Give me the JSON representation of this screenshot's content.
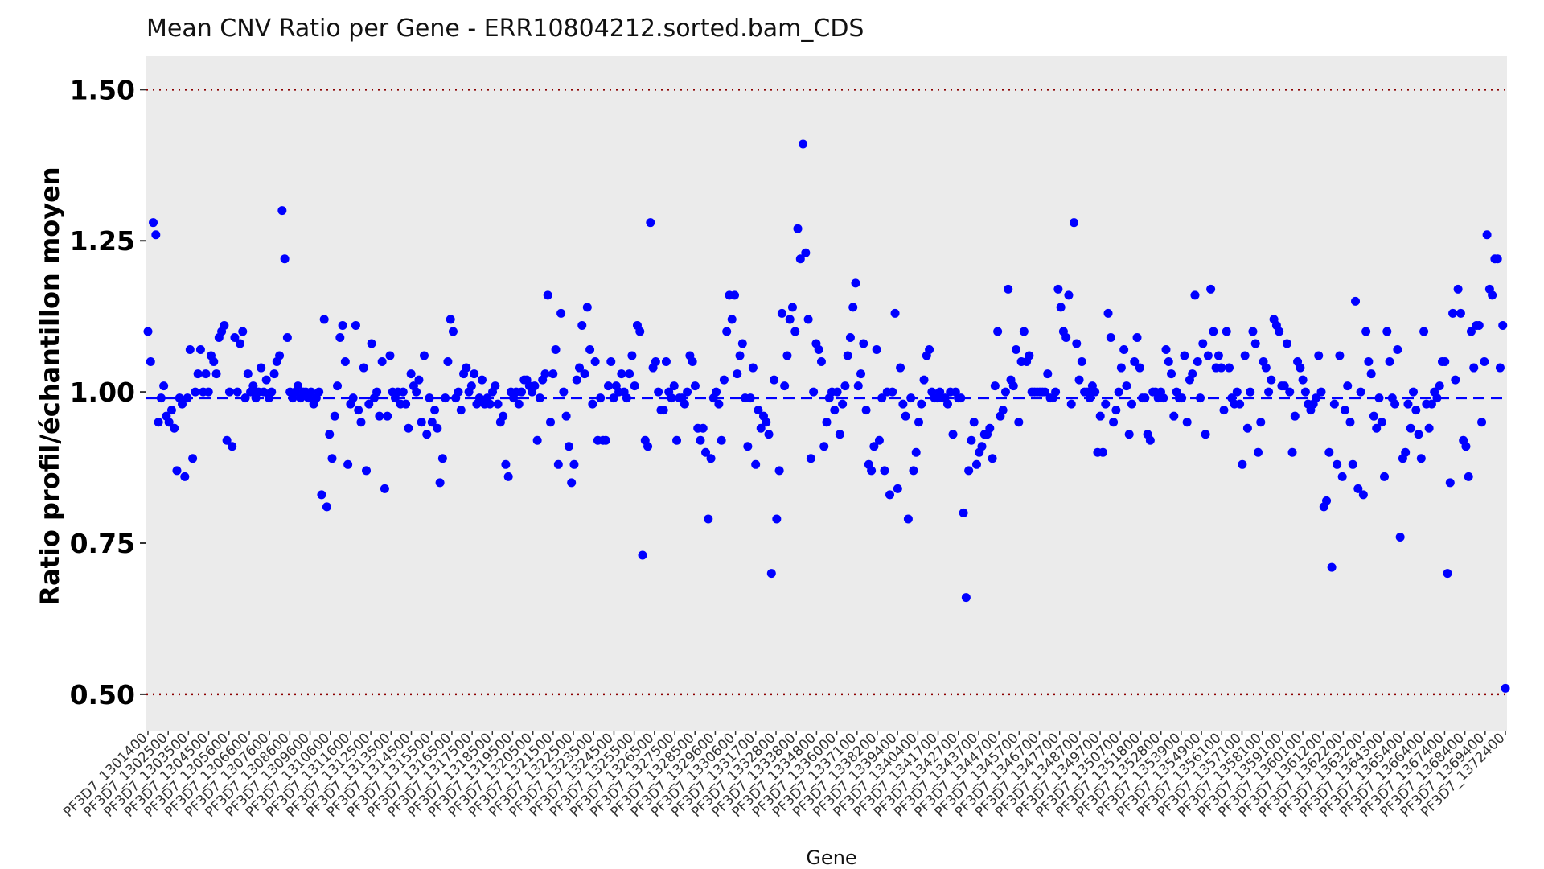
{
  "chart_data": {
    "type": "scatter",
    "title": "Mean CNV Ratio per Gene - ERR10804212.sorted.bam_CDS",
    "xlabel": "Gene",
    "ylabel": "Ratio profil/échantillon moyen",
    "ylim": [
      0.44,
      1.555
    ],
    "yticks": [
      0.5,
      0.75,
      1.0,
      1.25,
      1.5
    ],
    "ytick_labels": [
      "0.50",
      "0.75",
      "1.00",
      "1.25",
      "1.50"
    ],
    "reference_lines": [
      {
        "y": 1.5,
        "style": "dotted",
        "color": "#8b0000"
      },
      {
        "y": 0.5,
        "style": "dotted",
        "color": "#8b0000"
      },
      {
        "y": 0.99,
        "style": "dashed",
        "color": "#0000ff"
      }
    ],
    "grid": false,
    "point_color": "#0000ff",
    "plot_background": "#ebebeb",
    "xtick_labels": [
      "PF3D7_1301400",
      "PF3D7_1302500",
      "PF3D7_1303500",
      "PF3D7_1304500",
      "PF3D7_1305600",
      "PF3D7_1306600",
      "PF3D7_1307600",
      "PF3D7_1308600",
      "PF3D7_1309600",
      "PF3D7_1310600",
      "PF3D7_1311600",
      "PF3D7_1312500",
      "PF3D7_1313500",
      "PF3D7_1314500",
      "PF3D7_1315500",
      "PF3D7_1316500",
      "PF3D7_1317500",
      "PF3D7_1318500",
      "PF3D7_1319500",
      "PF3D7_1320500",
      "PF3D7_1321500",
      "PF3D7_1322500",
      "PF3D7_1323500",
      "PF3D7_1324500",
      "PF3D7_1325500",
      "PF3D7_1326500",
      "PF3D7_1327500",
      "PF3D7_1328500",
      "PF3D7_1329600",
      "PF3D7_1330600",
      "PF3D7_1331700",
      "PF3D7_1332800",
      "PF3D7_1333800",
      "PF3D7_1334800",
      "PF3D7_1336000",
      "PF3D7_1337100",
      "PF3D7_1338200",
      "PF3D7_1339400",
      "PF3D7_1340400",
      "PF3D7_1341700",
      "PF3D7_1342700",
      "PF3D7_1343700",
      "PF3D7_1344700",
      "PF3D7_1345700",
      "PF3D7_1346700",
      "PF3D7_1347700",
      "PF3D7_1348700",
      "PF3D7_1349700",
      "PF3D7_1350700",
      "PF3D7_1351800",
      "PF3D7_1352800",
      "PF3D7_1353900",
      "PF3D7_1354900",
      "PF3D7_1356100",
      "PF3D7_1357100",
      "PF3D7_1358100",
      "PF3D7_1359100",
      "PF3D7_1360100",
      "PF3D7_1361200",
      "PF3D7_1362200",
      "PF3D7_1363200",
      "PF3D7_1364300",
      "PF3D7_1365400",
      "PF3D7_1366400",
      "PF3D7_1367400",
      "PF3D7_1368400",
      "PF3D7_1369400",
      "PF3D7_1372400"
    ],
    "y": [
      1.1,
      1.05,
      1.28,
      1.26,
      0.95,
      0.99,
      1.01,
      0.96,
      0.95,
      0.97,
      0.94,
      0.87,
      0.99,
      0.98,
      0.86,
      0.99,
      1.07,
      0.89,
      1.0,
      1.03,
      1.07,
      1.0,
      1.03,
      1.0,
      1.06,
      1.05,
      1.03,
      1.09,
      1.1,
      1.11,
      0.92,
      1.0,
      0.91,
      1.09,
      1.0,
      1.08,
      1.1,
      0.99,
      1.03,
      1.0,
      1.01,
      0.99,
      1.0,
      1.04,
      1.0,
      1.02,
      0.99,
      1.0,
      1.03,
      1.05,
      1.06,
      1.3,
      1.22,
      1.09,
      1.0,
      0.99,
      1.0,
      1.01,
      0.99,
      1.0,
      1.0,
      0.99,
      1.0,
      0.98,
      0.99,
      1.0,
      0.83,
      1.12,
      0.81,
      0.93,
      0.89,
      0.96,
      1.01,
      1.09,
      1.11,
      1.05,
      0.88,
      0.98,
      0.99,
      1.11,
      0.97,
      0.95,
      1.04,
      0.87,
      0.98,
      1.08,
      0.99,
      1.0,
      0.96,
      1.05,
      0.84,
      0.96,
      1.06,
      1.0,
      0.99,
      1.0,
      0.98,
      1.0,
      0.98,
      0.94,
      1.03,
      1.01,
      1.0,
      1.02,
      0.95,
      1.06,
      0.93,
      0.99,
      0.95,
      0.97,
      0.94,
      0.85,
      0.89,
      0.99,
      1.05,
      1.12,
      1.1,
      0.99,
      1.0,
      0.97,
      1.03,
      1.04,
      1.0,
      1.01,
      1.03,
      0.98,
      0.99,
      1.02,
      0.98,
      0.99,
      0.98,
      1.0,
      1.01,
      0.98,
      0.95,
      0.96,
      0.88,
      0.86,
      1.0,
      0.99,
      1.0,
      0.98,
      1.0,
      1.02,
      1.02,
      1.01,
      1.0,
      1.01,
      0.92,
      0.99,
      1.02,
      1.03,
      1.16,
      0.95,
      1.03,
      1.07,
      0.88,
      1.13,
      1.0,
      0.96,
      0.91,
      0.85,
      0.88,
      1.02,
      1.04,
      1.11,
      1.03,
      1.14,
      1.07,
      0.98,
      1.05,
      0.92,
      0.99,
      0.92,
      0.92,
      1.01,
      1.05,
      0.99,
      1.01,
      1.0,
      1.03,
      1.0,
      0.99,
      1.03,
      1.06,
      1.01,
      1.11,
      1.1,
      0.73,
      0.92,
      0.91,
      1.28,
      1.04,
      1.05,
      1.0,
      0.97,
      0.97,
      1.05,
      1.0,
      0.99,
      1.01,
      0.92,
      0.99,
      0.99,
      0.98,
      1.0,
      1.06,
      1.05,
      1.01,
      0.94,
      0.92,
      0.94,
      0.9,
      0.79,
      0.89,
      0.99,
      1.0,
      0.98,
      0.92,
      1.02,
      1.1,
      1.16,
      1.12,
      1.16,
      1.03,
      1.06,
      1.08,
      0.99,
      0.91,
      0.99,
      1.04,
      0.88,
      0.97,
      0.94,
      0.96,
      0.95,
      0.93,
      0.7,
      1.02,
      0.79,
      0.87,
      1.13,
      1.01,
      1.06,
      1.12,
      1.14,
      1.1,
      1.27,
      1.22,
      1.41,
      1.23,
      1.12,
      0.89,
      1.0,
      1.08,
      1.07,
      1.05,
      0.91,
      0.95,
      0.99,
      1.0,
      0.97,
      1.0,
      0.93,
      0.98,
      1.01,
      1.06,
      1.09,
      1.14,
      1.18,
      1.01,
      1.03,
      1.08,
      0.97,
      0.88,
      0.87,
      0.91,
      1.07,
      0.92,
      0.99,
      0.87,
      1.0,
      0.83,
      1.0,
      1.13,
      0.84,
      1.04,
      0.98,
      0.96,
      0.79,
      0.99,
      0.87,
      0.9,
      0.95,
      0.98,
      1.02,
      1.06,
      1.07,
      1.0,
      0.99,
      0.99,
      1.0,
      0.99,
      0.99,
      0.98,
      1.0,
      0.93,
      1.0,
      0.99,
      0.99,
      0.8,
      0.66,
      0.87,
      0.92,
      0.95,
      0.88,
      0.9,
      0.91,
      0.93,
      0.93,
      0.94,
      0.89,
      1.01,
      1.1,
      0.96,
      0.97,
      1.0,
      1.17,
      1.02,
      1.01,
      1.07,
      0.95,
      1.05,
      1.1,
      1.05,
      1.06,
      1.0,
      1.0,
      1.0,
      1.0,
      1.0,
      1.0,
      1.03,
      0.99,
      0.99,
      1.0,
      1.17,
      1.14,
      1.1,
      1.09,
      1.16,
      0.98,
      1.28,
      1.08,
      1.02,
      1.05,
      1.0,
      1.0,
      0.99,
      1.01,
      1.0,
      0.9,
      0.96,
      0.9,
      0.98,
      1.13,
      1.09,
      0.95,
      0.97,
      1.0,
      1.04,
      1.07,
      1.01,
      0.93,
      0.98,
      1.05,
      1.09,
      1.04,
      0.99,
      0.99,
      0.93,
      0.92,
      1.0,
      1.0,
      0.99,
      1.0,
      0.99,
      1.07,
      1.05,
      1.03,
      0.96,
      1.0,
      0.99,
      0.99,
      1.06,
      0.95,
      1.02,
      1.03,
      1.16,
      1.05,
      0.99,
      1.08,
      0.93,
      1.06,
      1.17,
      1.1,
      1.04,
      1.06,
      1.04,
      0.97,
      1.1,
      1.04,
      0.99,
      0.98,
      1.0,
      0.98,
      0.88,
      1.06,
      0.94,
      1.0,
      1.1,
      1.08,
      0.9,
      0.95,
      1.05,
      1.04,
      1.0,
      1.02,
      1.12,
      1.11,
      1.1,
      1.01,
      1.01,
      1.08,
      1.0,
      0.9,
      0.96,
      1.05,
      1.04,
      1.02,
      1.0,
      0.98,
      0.97,
      0.98,
      0.99,
      1.06,
      1.0,
      0.81,
      0.82,
      0.9,
      0.71,
      0.98,
      0.88,
      1.06,
      0.86,
      0.97,
      1.01,
      0.95,
      0.88,
      1.15,
      0.84,
      1.0,
      0.83,
      1.1,
      1.05,
      1.03,
      0.96,
      0.94,
      0.99,
      0.95,
      0.86,
      1.1,
      1.05,
      0.99,
      0.98,
      1.07,
      0.76,
      0.89,
      0.9,
      0.98,
      0.94,
      1.0,
      0.97,
      0.93,
      0.89,
      1.1,
      0.98,
      0.94,
      0.98,
      1.0,
      0.99,
      1.01,
      1.05,
      1.05,
      0.7,
      0.85,
      1.13,
      1.02,
      1.17,
      1.13,
      0.92,
      0.91,
      0.86,
      1.1,
      1.04,
      1.11,
      1.11,
      0.95,
      1.05,
      1.26,
      1.17,
      1.16,
      1.22,
      1.22,
      1.04,
      1.11,
      0.51
    ]
  }
}
